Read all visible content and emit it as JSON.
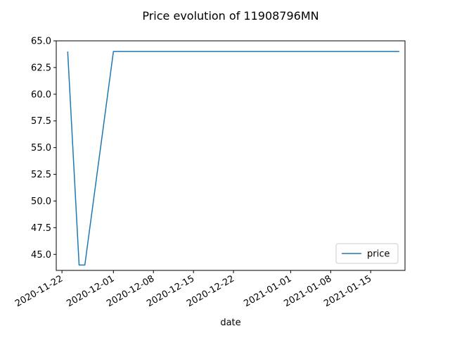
{
  "chart_data": {
    "type": "line",
    "title": "Price evolution of 11908796MN",
    "xlabel": "date",
    "ylabel": "",
    "x_scale": "date",
    "xlim": [
      "2020-11-21",
      "2021-01-21"
    ],
    "ylim": [
      43.5,
      65.0
    ],
    "grid": false,
    "legend_position": "lower right",
    "x_ticks": [
      "2020-11-22",
      "2020-12-01",
      "2020-12-08",
      "2020-12-15",
      "2020-12-22",
      "2021-01-01",
      "2021-01-08",
      "2021-01-15"
    ],
    "y_ticks": [
      45.0,
      47.5,
      50.0,
      52.5,
      55.0,
      57.5,
      60.0,
      62.5,
      65.0
    ],
    "series": [
      {
        "name": "price",
        "color": "#1f77b4",
        "x": [
          "2020-11-23",
          "2020-11-25",
          "2020-11-26",
          "2020-12-01",
          "2021-01-20"
        ],
        "y": [
          64.0,
          44.0,
          44.0,
          64.0,
          64.0
        ]
      }
    ]
  }
}
